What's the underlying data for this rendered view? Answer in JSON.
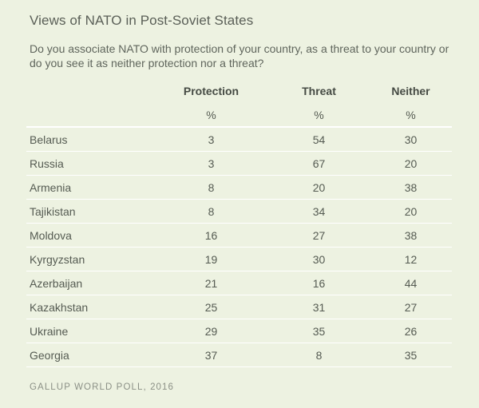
{
  "chart_data": {
    "type": "table",
    "title": "Views of NATO in Post-Soviet States",
    "subtitle": "Do you associate NATO with protection of your country, as a threat to your country or do you see it as neither protection nor a threat?",
    "columns": [
      "Protection",
      "Threat",
      "Neither"
    ],
    "units": [
      "%",
      "%",
      "%"
    ],
    "rows": [
      {
        "country": "Belarus",
        "values": [
          "3",
          "54",
          "30"
        ]
      },
      {
        "country": "Russia",
        "values": [
          "3",
          "67",
          "20"
        ]
      },
      {
        "country": "Armenia",
        "values": [
          "8",
          "20",
          "38"
        ]
      },
      {
        "country": "Tajikistan",
        "values": [
          "8",
          "34",
          "20"
        ]
      },
      {
        "country": "Moldova",
        "values": [
          "16",
          "27",
          "38"
        ]
      },
      {
        "country": "Kyrgyzstan",
        "values": [
          "19",
          "30",
          "12"
        ]
      },
      {
        "country": "Azerbaijan",
        "values": [
          "21",
          "16",
          "44"
        ]
      },
      {
        "country": "Kazakhstan",
        "values": [
          "25",
          "31",
          "27"
        ]
      },
      {
        "country": "Ukraine",
        "values": [
          "29",
          "35",
          "26"
        ]
      },
      {
        "country": "Georgia",
        "values": [
          "37",
          "8",
          "35"
        ]
      }
    ],
    "source": "GALLUP WORLD POLL, 2016"
  },
  "colors": {
    "background": "#edf2e1",
    "rule": "#ffffff",
    "text": "#555b52",
    "source_text": "#8b9086"
  }
}
